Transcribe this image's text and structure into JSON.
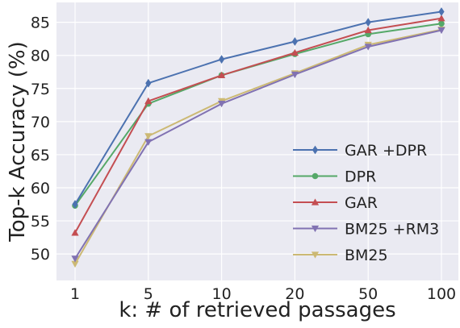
{
  "chart_data": {
    "type": "line",
    "title": "",
    "xlabel": "k: # of retrieved passages",
    "ylabel": "Top-k Accuracy (%)",
    "categories": [
      "1",
      "5",
      "10",
      "20",
      "50",
      "100"
    ],
    "ylim": [
      46,
      88
    ],
    "yticks": [
      50,
      55,
      60,
      65,
      70,
      75,
      80,
      85
    ],
    "grid": true,
    "background": "#eaeaf2",
    "legend_position": "bottom-right",
    "series": [
      {
        "name": "GAR +DPR",
        "color": "#4c72b0",
        "marker": "diamond",
        "values": [
          57.5,
          75.8,
          79.4,
          82.1,
          85.0,
          86.6
        ]
      },
      {
        "name": "DPR",
        "color": "#55a868",
        "marker": "circle",
        "values": [
          57.3,
          72.7,
          77.0,
          80.2,
          83.2,
          84.8
        ]
      },
      {
        "name": "GAR",
        "color": "#c44e52",
        "marker": "triangle-up",
        "values": [
          53.2,
          73.1,
          77.0,
          80.4,
          83.8,
          85.6
        ]
      },
      {
        "name": "BM25 +RM3",
        "color": "#8172b2",
        "marker": "triangle-down",
        "values": [
          49.3,
          66.9,
          72.7,
          77.1,
          81.3,
          83.8
        ]
      },
      {
        "name": "BM25",
        "color": "#ccb974",
        "marker": "triangle-down",
        "values": [
          48.5,
          67.8,
          73.1,
          77.3,
          81.6,
          83.9
        ]
      }
    ]
  }
}
